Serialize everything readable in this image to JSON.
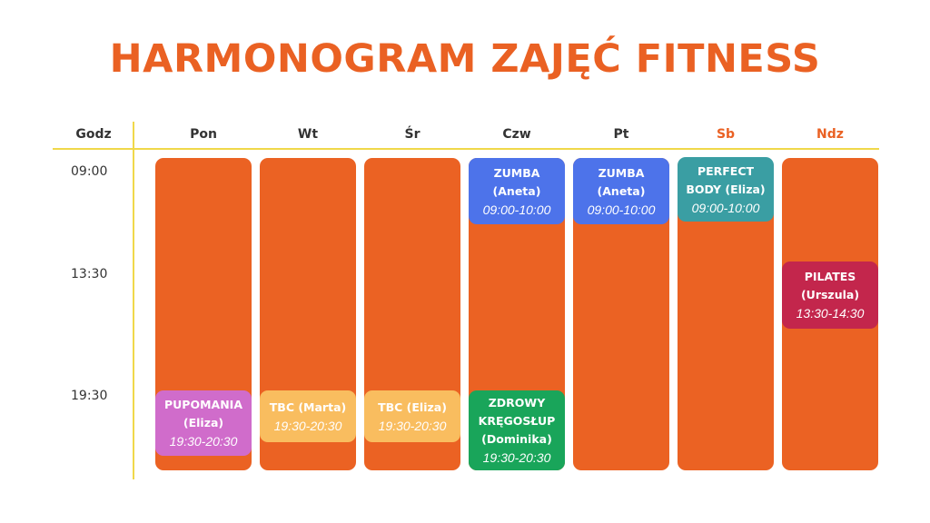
{
  "title": "HARMONOGRAM ZAJĘĆ FITNESS",
  "header": {
    "hour": "Godz",
    "days": [
      "Pon",
      "Wt",
      "Śr",
      "Czw",
      "Pt",
      "Sb",
      "Ndz"
    ]
  },
  "times": [
    "09:00",
    "13:30",
    "19:30"
  ],
  "colors": {
    "accent": "#ea6123",
    "column": "#eb6223",
    "gridline": "#f0d84a",
    "zumba": "#4d73ea",
    "perfect_body": "#3a9ea3",
    "pilates": "#c3264c",
    "pupomania": "#d06ccb",
    "tbc": "#f9bd5f",
    "zdrowy": "#19a55a"
  },
  "events": {
    "zumba_czw": {
      "name1": "ZUMBA",
      "name2": "(Aneta)",
      "time": "09:00-10:00"
    },
    "zumba_pt": {
      "name1": "ZUMBA",
      "name2": "(Aneta)",
      "time": "09:00-10:00"
    },
    "perfect_body_sb": {
      "name1": "PERFECT",
      "name2": "BODY (Eliza)",
      "time": "09:00-10:00"
    },
    "pilates_ndz": {
      "name1": "PILATES",
      "name2": "(Urszula)",
      "time": "13:30-14:30"
    },
    "pupomania_pon": {
      "name1": "PUPOMANIA",
      "name2": "(Eliza)",
      "time": "19:30-20:30"
    },
    "tbc_wt": {
      "name1": "TBC (Marta)",
      "time": "19:30-20:30"
    },
    "tbc_sr": {
      "name1": "TBC (Eliza)",
      "time": "19:30-20:30"
    },
    "zdrowy_czw": {
      "name1": "ZDROWY",
      "name2": "KRĘGOSŁUP",
      "name3": "(Dominika)",
      "time": "19:30-20:30"
    }
  }
}
